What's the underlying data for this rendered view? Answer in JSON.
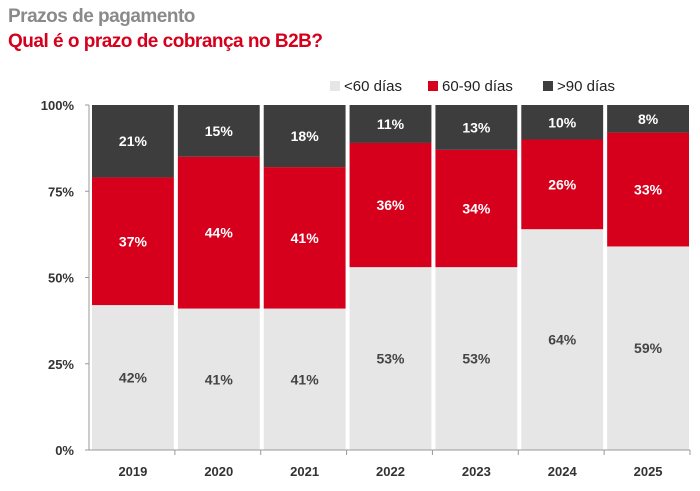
{
  "chart_data": {
    "type": "bar",
    "stacked": true,
    "title": "Prazos de pagamento",
    "subtitle": "Qual é o prazo de cobrança no B2B?",
    "categories": [
      "2019",
      "2020",
      "2021",
      "2022",
      "2023",
      "2024",
      "2025"
    ],
    "series": [
      {
        "name": "<60 días",
        "color": "#e6e6e6",
        "values": [
          42,
          41,
          41,
          53,
          53,
          64,
          59
        ]
      },
      {
        "name": "60-90 días",
        "color": "#d6001c",
        "values": [
          37,
          44,
          41,
          36,
          34,
          26,
          33
        ]
      },
      {
        "name": ">90 días",
        "color": "#3d3d3d",
        "values": [
          21,
          15,
          18,
          11,
          13,
          10,
          8
        ]
      }
    ],
    "yticks": [
      "0%",
      "25%",
      "50%",
      "75%",
      "100%"
    ],
    "ylim": [
      0,
      100
    ],
    "legend": "top-right",
    "grid": false
  }
}
